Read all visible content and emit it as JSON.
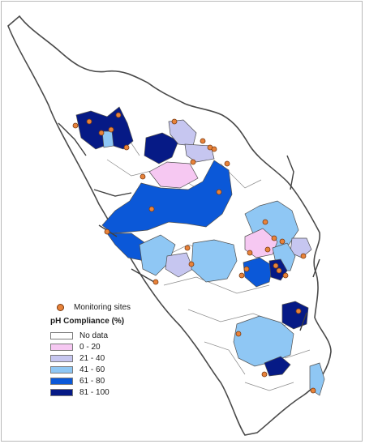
{
  "legend": {
    "sites_label": "Monitoring sites",
    "title": "pH Compliance (%)",
    "classes": [
      {
        "label": "No data",
        "color": "#ffffff"
      },
      {
        "label": "0 - 20",
        "color": "#f6c8f2"
      },
      {
        "label": "21 - 40",
        "color": "#c6c6f0"
      },
      {
        "label": "41 - 60",
        "color": "#8fc7f4"
      },
      {
        "label": "61 - 80",
        "color": "#0b58d8"
      },
      {
        "label": "81 - 100",
        "color": "#061a86"
      }
    ]
  },
  "colors": {
    "site_fill": "#e8833a",
    "site_stroke": "#7a3a12",
    "boundary": "#5a5a5a"
  }
}
